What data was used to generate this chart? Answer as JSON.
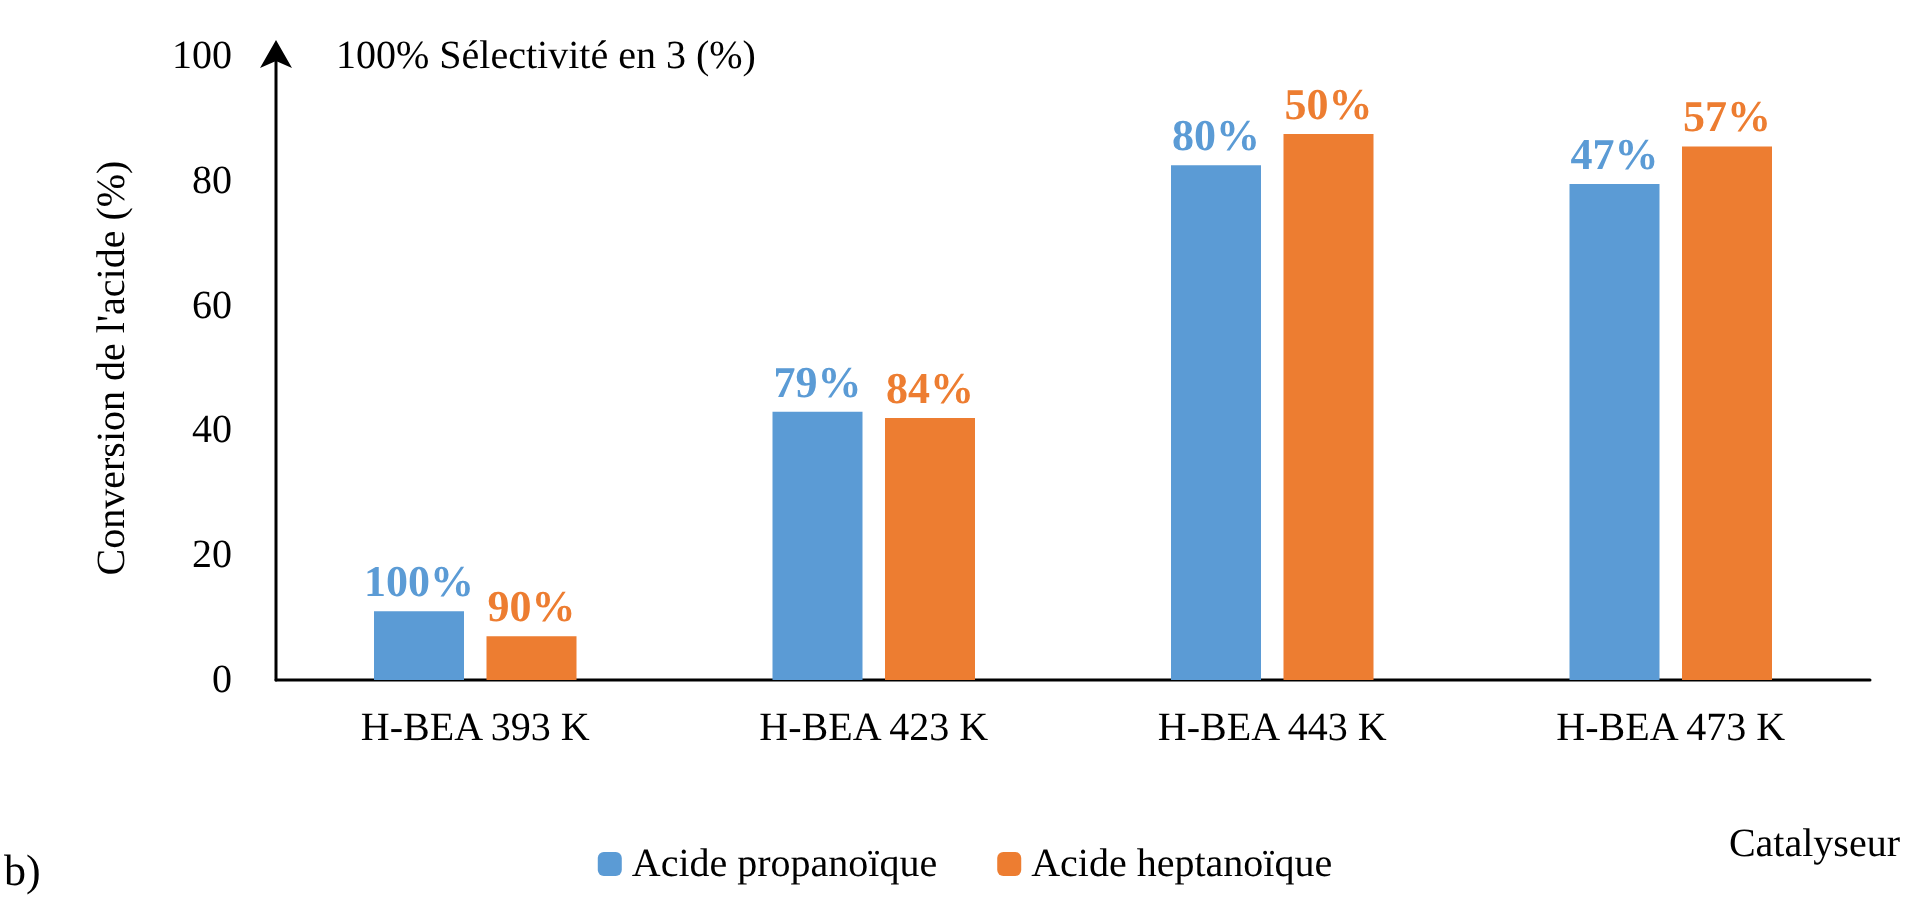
{
  "chart_data": {
    "type": "bar",
    "xlabel": "Catalyseur",
    "ylabel": "Conversion de l'acide (%)",
    "categories": [
      "H-BEA 393 K",
      "H-BEA 423 K",
      "H-BEA 443 K",
      "H-BEA 473 K"
    ],
    "series": [
      {
        "name": "Acide propanoïque",
        "color": "#5b9bd5",
        "values": [
          11,
          43,
          82.5,
          79.5
        ]
      },
      {
        "name": "Acide heptanoïque",
        "color": "#ed7d31",
        "values": [
          7,
          42,
          87.5,
          85.5
        ]
      }
    ],
    "ylim": [
      0,
      100
    ],
    "yticks": [
      0,
      20,
      40,
      60,
      80,
      100
    ],
    "grid": false,
    "legend": "bottom",
    "annotations": [
      "100% Sélectivité en 3 (%)",
      "b)",
      "100%",
      "79%",
      "80%",
      "47%",
      "90%",
      "84%",
      "50%",
      "57%"
    ]
  }
}
